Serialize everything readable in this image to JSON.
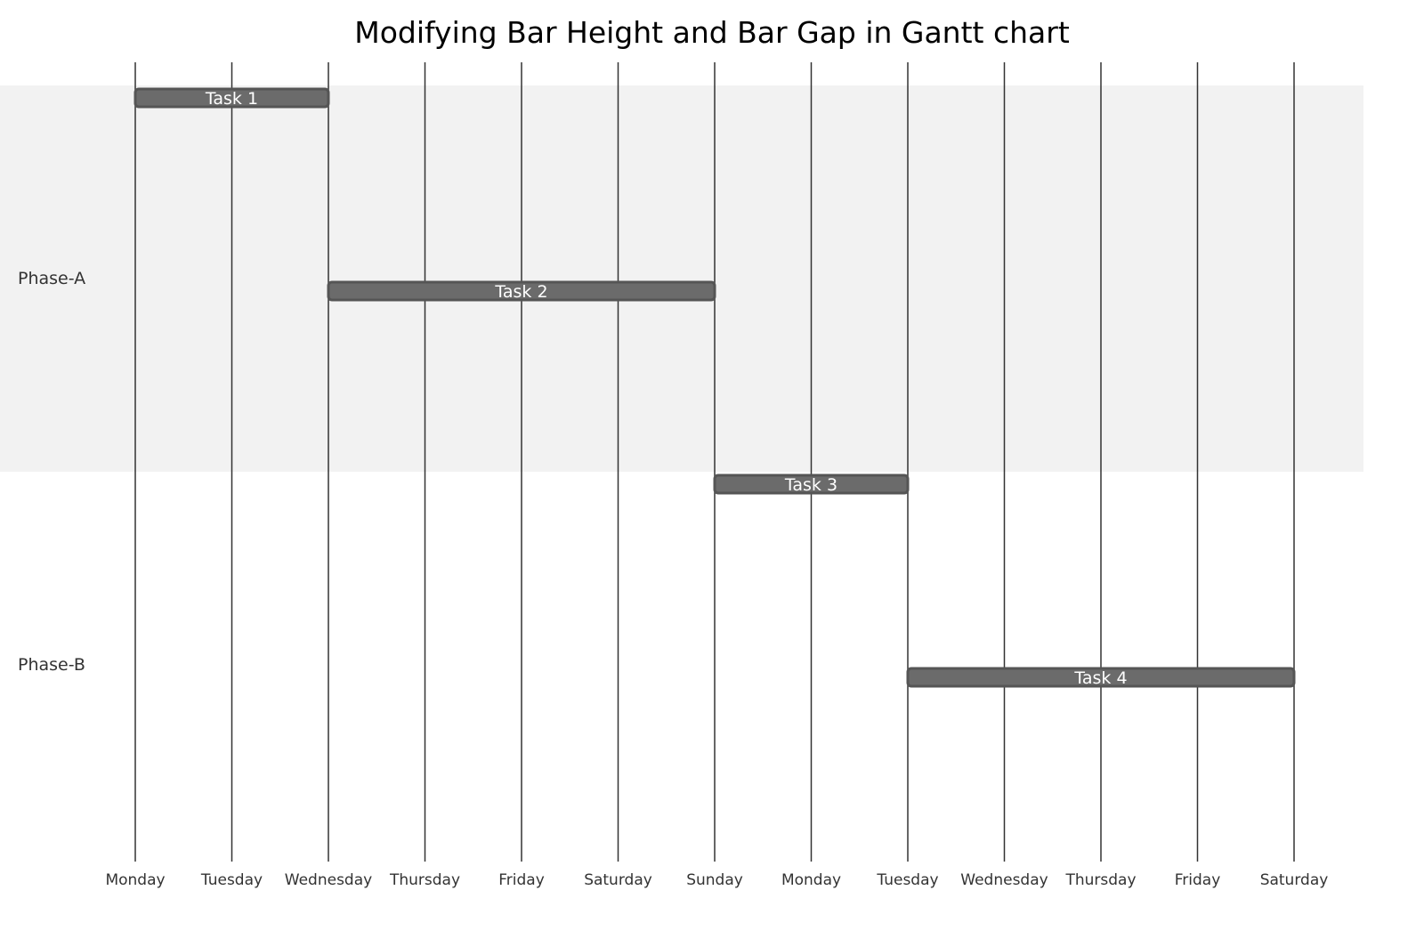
{
  "chart_data": {
    "type": "gantt",
    "title": "Modifying Bar Height and Bar Gap in Gantt chart",
    "x_ticks": [
      "Monday",
      "Tuesday",
      "Wednesday",
      "Thursday",
      "Friday",
      "Saturday",
      "Sunday",
      "Monday",
      "Tuesday",
      "Wednesday",
      "Thursday",
      "Friday",
      "Saturday"
    ],
    "categories": [
      "Phase-A",
      "Phase-B"
    ],
    "tasks": [
      {
        "label": "Task 1",
        "category": "Phase-A",
        "start": 0,
        "end": 2
      },
      {
        "label": "Task 2",
        "category": "Phase-A",
        "start": 2,
        "end": 6
      },
      {
        "label": "Task 3",
        "category": "Phase-B",
        "start": 6,
        "end": 8
      },
      {
        "label": "Task 4",
        "category": "Phase-B",
        "start": 8,
        "end": 12
      }
    ],
    "grid": true,
    "colors": {
      "bar_fill": "#6b6b6b",
      "bar_stroke": "#555555",
      "alternate_band": "#f2f2f2",
      "gridline": "#333333"
    }
  }
}
